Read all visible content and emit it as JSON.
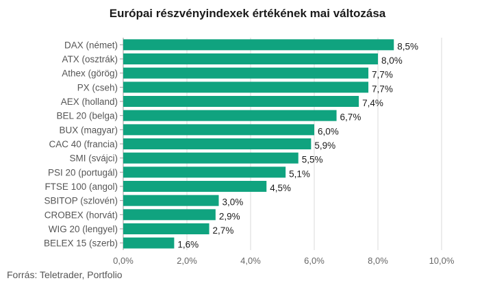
{
  "chart_data": {
    "type": "bar",
    "orientation": "horizontal",
    "title": "Európai részvényindexek értékének mai változása",
    "categories": [
      "DAX (német)",
      "ATX (osztrák)",
      "Athex (görög)",
      "PX (cseh)",
      "AEX (holland)",
      "BEL 20 (belga)",
      "BUX (magyar)",
      "CAC 40 (francia)",
      "SMI (svájci)",
      "PSI 20 (portugál)",
      "FTSE 100 (angol)",
      "SBITOP (szlovén)",
      "CROBEX (horvát)",
      "WIG 20 (lengyel)",
      "BELEX 15 (szerb)"
    ],
    "values": [
      8.5,
      8.0,
      7.7,
      7.7,
      7.4,
      6.7,
      6.0,
      5.9,
      5.5,
      5.1,
      4.5,
      3.0,
      2.9,
      2.7,
      1.6
    ],
    "value_labels": [
      "8,5%",
      "8,0%",
      "7,7%",
      "7,7%",
      "7,4%",
      "6,7%",
      "6,0%",
      "5,9%",
      "5,5%",
      "5,1%",
      "4,5%",
      "3,0%",
      "2,9%",
      "2,7%",
      "1,6%"
    ],
    "x_ticks": [
      0,
      2,
      4,
      6,
      8,
      10
    ],
    "x_tick_labels": [
      "0,0%",
      "2,0%",
      "4,0%",
      "6,0%",
      "8,0%",
      "10,0%"
    ],
    "xlim": [
      0,
      10
    ],
    "grid": true,
    "legend": false,
    "bar_color": "#10a37f",
    "source": "Forrás: Teletrader, Portfolio"
  }
}
